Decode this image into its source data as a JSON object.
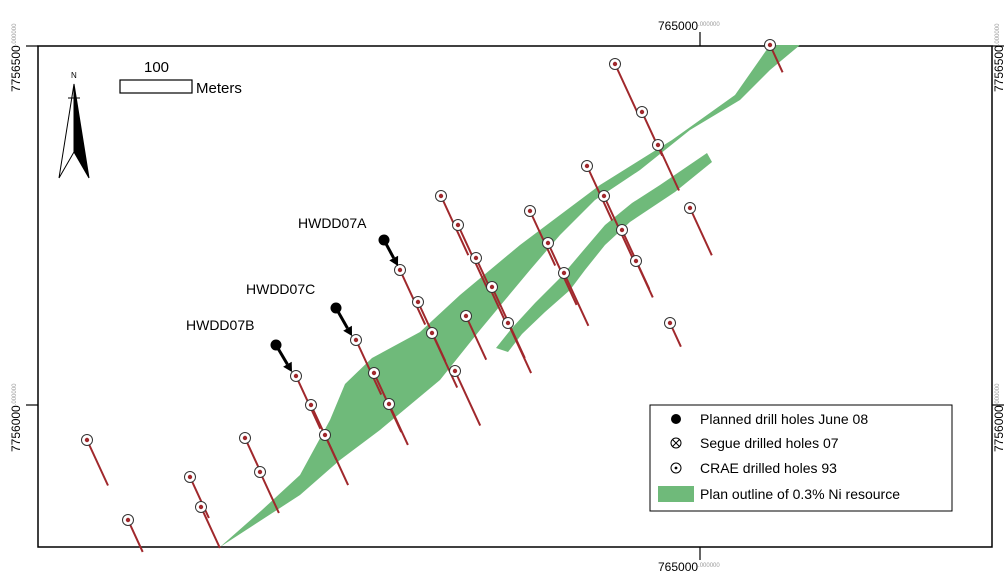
{
  "coords": {
    "easting_main": "765000",
    "easting_sup": ".000000",
    "northing_top_main": "7756500",
    "northing_top_sup": ".000000",
    "northing_mid_main": "7756000",
    "northing_mid_sup": ".000000"
  },
  "north_arrow": {
    "label": "N"
  },
  "scale_bar": {
    "value": "100",
    "unit": "Meters"
  },
  "hole_labels": [
    "HWDD07A",
    "HWDD07C",
    "HWDD07B"
  ],
  "legend": {
    "items": [
      {
        "symbol": "filled-circle-icon",
        "label": "Planned drill holes June 08"
      },
      {
        "symbol": "crossed-circle-icon",
        "label": "Segue drilled holes 07"
      },
      {
        "symbol": "dotted-circle-icon",
        "label": "CRAE drilled holes 93"
      },
      {
        "symbol": "green-swatch-icon",
        "label": "Plan outline of 0.3% Ni resource"
      }
    ]
  },
  "colors": {
    "resource_fill": "#6fba7a",
    "trace": "#a0282c",
    "frame": "#000000"
  }
}
